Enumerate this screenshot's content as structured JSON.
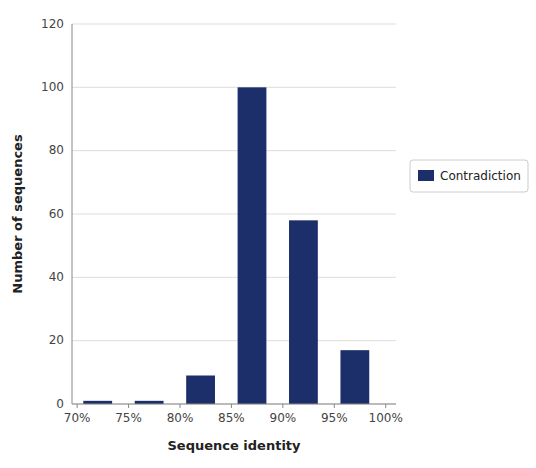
{
  "chart_data": {
    "type": "bar",
    "xlabel": "Sequence identity",
    "ylabel": "Number of sequences",
    "x": [
      72,
      77,
      82,
      87,
      92,
      97
    ],
    "series": [
      {
        "name": "Contradiction",
        "color": "#1C2F6B",
        "values": [
          1,
          1,
          9,
          100,
          58,
          17
        ]
      }
    ],
    "xlim": [
      69.5,
      101
    ],
    "xticks": [
      {
        "value": 70,
        "label": "70%"
      },
      {
        "value": 75,
        "label": "75%"
      },
      {
        "value": 80,
        "label": "80%"
      },
      {
        "value": 85,
        "label": "85%"
      },
      {
        "value": 90,
        "label": "90%"
      },
      {
        "value": 95,
        "label": "95%"
      },
      {
        "value": 100,
        "label": "100%"
      }
    ],
    "ylim": [
      0,
      120
    ],
    "yticks": [
      0,
      20,
      40,
      60,
      80,
      100,
      120
    ],
    "grid": true,
    "legend": "right"
  }
}
